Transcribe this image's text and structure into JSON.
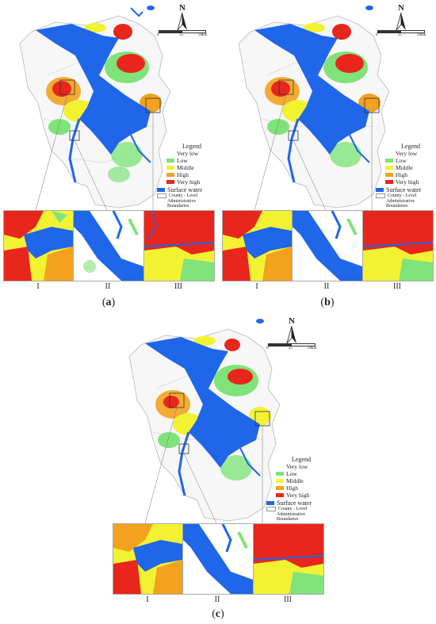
{
  "colors": {
    "very_low": "#ffffff",
    "low": "#7fe37a",
    "middle": "#f2f233",
    "high": "#f2a21e",
    "very_high": "#e8261c",
    "surface_water": "#1f66e8",
    "boundary": "#b8b8b8"
  },
  "north_arrow": {
    "letter": "N"
  },
  "scale_bar": {
    "labels": [
      "0",
      "25",
      "50km"
    ]
  },
  "legend": {
    "title": "Legend",
    "classes": [
      "Very low",
      "Low",
      "Middle",
      "High",
      "Very high"
    ],
    "water": "Surface water",
    "boundary_lines": [
      "County - Level",
      "Administrative",
      "Boundaries"
    ]
  },
  "zoom_labels": [
    "I",
    "II",
    "III"
  ],
  "panels": [
    {
      "id": "a",
      "label": "a"
    },
    {
      "id": "b",
      "label": "b"
    },
    {
      "id": "c",
      "label": "c"
    }
  ]
}
